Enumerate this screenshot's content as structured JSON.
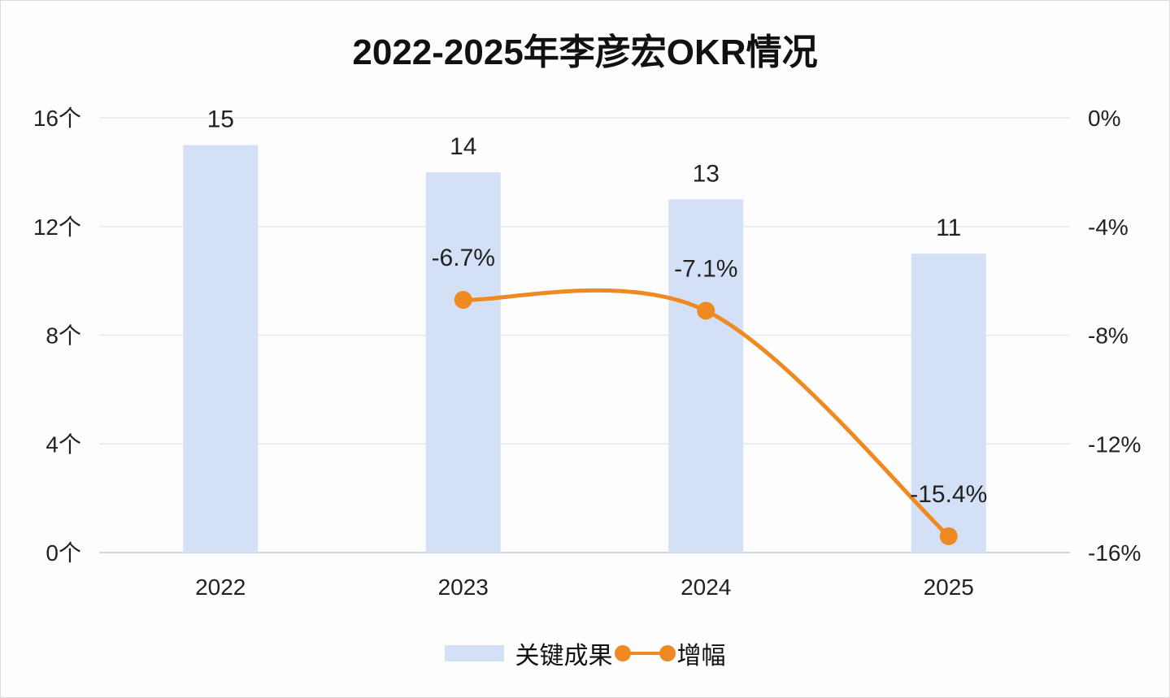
{
  "chart_data": {
    "type": "bar+line",
    "title": "2022-2025年李彦宏OKR情况",
    "categories": [
      "2022",
      "2023",
      "2024",
      "2025"
    ],
    "series": [
      {
        "name": "关键成果",
        "type": "bar",
        "axis": "left",
        "values": [
          15,
          14,
          13,
          11
        ],
        "labels": [
          "15",
          "14",
          "13",
          "11"
        ],
        "color": "#d4e0f5"
      },
      {
        "name": "增幅",
        "type": "line",
        "axis": "right",
        "values": [
          null,
          -6.7,
          -7.1,
          -15.4
        ],
        "labels": [
          "",
          "-6.7%",
          "-7.1%",
          "-15.4%"
        ],
        "color": "#ef8a22"
      }
    ],
    "left_axis": {
      "range": [
        0,
        16
      ],
      "ticks": [
        0,
        4,
        8,
        12,
        16
      ],
      "tick_labels": [
        "0个",
        "4个",
        "8个",
        "12个",
        "16个"
      ]
    },
    "right_axis": {
      "range": [
        -16,
        0
      ],
      "ticks": [
        0,
        -4,
        -8,
        -12,
        -16
      ],
      "tick_labels": [
        "0%",
        "-4%",
        "-8%",
        "-12%",
        "-16%"
      ]
    },
    "grid": true,
    "legend_position": "bottom"
  }
}
